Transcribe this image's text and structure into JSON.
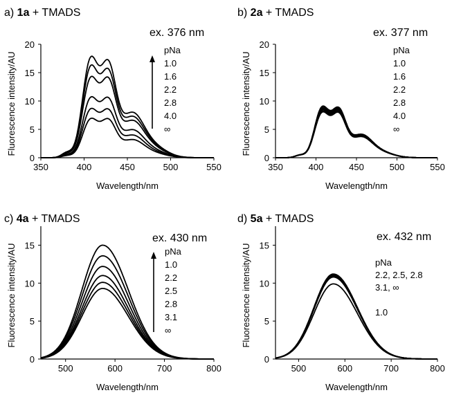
{
  "chart_data": [
    {
      "type": "line",
      "label": "a)",
      "compound": "1a",
      "title_suffix": "+ TMADS",
      "excitation": "ex. 376 nm",
      "xlabel": "Wavelength/nm",
      "ylabel": "Fluorescence intensity/AU",
      "xlim": [
        350,
        550
      ],
      "ylim": [
        0,
        20
      ],
      "xticks": [
        350,
        400,
        450,
        500,
        550
      ],
      "yticks": [
        0,
        5,
        10,
        15,
        20
      ],
      "legend_title": "pNa",
      "legend": [
        "1.0",
        "1.6",
        "2.2",
        "2.8",
        "4.0",
        "∞"
      ],
      "arrow": true,
      "curve_shape": "two-peak",
      "series": [
        {
          "name": "1.0",
          "peaks": [
            17.5,
            17.0
          ]
        },
        {
          "name": "1.6",
          "peaks": [
            16.0,
            15.5
          ]
        },
        {
          "name": "2.2",
          "peaks": [
            14.0,
            14.0
          ]
        },
        {
          "name": "2.8",
          "peaks": [
            10.5,
            10.5
          ]
        },
        {
          "name": "4.0",
          "peaks": [
            8.5,
            8.5
          ]
        },
        {
          "name": "∞",
          "peaks": [
            6.8,
            6.8
          ]
        }
      ]
    },
    {
      "type": "line",
      "label": "b)",
      "compound": "2a",
      "title_suffix": "+ TMADS",
      "excitation": "ex. 377 nm",
      "xlabel": "Wavelength/nm",
      "ylabel": "Fluorescence intensity/AU",
      "xlim": [
        350,
        550
      ],
      "ylim": [
        0,
        20
      ],
      "xticks": [
        350,
        400,
        450,
        500,
        550
      ],
      "yticks": [
        0,
        5,
        10,
        15,
        20
      ],
      "legend_title": "pNa",
      "legend": [
        "1.0",
        "1.6",
        "2.2",
        "2.8",
        "4.0",
        "∞"
      ],
      "arrow": false,
      "curve_shape": "two-peak",
      "series": [
        {
          "name": "1.0",
          "peaks": [
            8.9,
            8.8
          ]
        },
        {
          "name": "1.6",
          "peaks": [
            8.7,
            8.6
          ]
        },
        {
          "name": "2.2",
          "peaks": [
            8.5,
            8.5
          ]
        },
        {
          "name": "2.8",
          "peaks": [
            8.3,
            8.3
          ]
        },
        {
          "name": "4.0",
          "peaks": [
            8.1,
            8.1
          ]
        },
        {
          "name": "∞",
          "peaks": [
            7.9,
            7.9
          ]
        }
      ]
    },
    {
      "type": "line",
      "label": "c)",
      "compound": "4a",
      "title_suffix": "+ TMADS",
      "excitation": "ex. 430 nm",
      "xlabel": "Wavelength/nm",
      "ylabel": "Fluorescence intensity/AU",
      "xlim": [
        450,
        800
      ],
      "ylim": [
        0,
        17.5
      ],
      "xticks": [
        500,
        600,
        700,
        800
      ],
      "yticks": [
        0,
        5,
        10,
        15
      ],
      "legend_title": "pNa",
      "legend": [
        "1.0",
        "2.2",
        "2.5",
        "2.8",
        "3.1",
        "∞"
      ],
      "arrow": true,
      "curve_shape": "single-peak",
      "series": [
        {
          "name": "1.0",
          "peak": 15.0
        },
        {
          "name": "2.2",
          "peak": 13.6
        },
        {
          "name": "2.5",
          "peak": 12.2
        },
        {
          "name": "2.8",
          "peak": 11.0
        },
        {
          "name": "3.1",
          "peak": 10.1
        },
        {
          "name": "∞",
          "peak": 9.3
        }
      ]
    },
    {
      "type": "line",
      "label": "d)",
      "compound": "5a",
      "title_suffix": "+ TMADS",
      "excitation": "ex. 432 nm",
      "xlabel": "Wavelength/nm",
      "ylabel": "Fluorescence intensity/AU",
      "xlim": [
        450,
        800
      ],
      "ylim": [
        0,
        17.5
      ],
      "xticks": [
        500,
        600,
        700,
        800
      ],
      "yticks": [
        0,
        5,
        10,
        15
      ],
      "legend_title": "pNa",
      "legend": [
        "2.2, 2.5, 2.8",
        "3.1, ∞",
        "",
        "1.0"
      ],
      "arrow": false,
      "curve_shape": "single-peak",
      "series": [
        {
          "name": "2.2",
          "peak": 11.2
        },
        {
          "name": "2.5",
          "peak": 11.1
        },
        {
          "name": "2.8",
          "peak": 11.0
        },
        {
          "name": "3.1",
          "peak": 10.9
        },
        {
          "name": "∞",
          "peak": 10.8
        },
        {
          "name": "1.0",
          "peak": 9.9
        }
      ]
    }
  ]
}
